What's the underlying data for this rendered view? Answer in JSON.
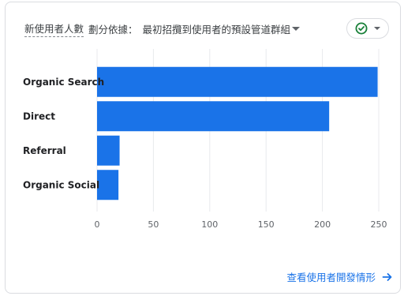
{
  "header": {
    "metric": "新使用者人數",
    "by_label": "劃分依據：",
    "dimension": "最初招攬到使用者的預設管道群組"
  },
  "status_button": {
    "icon": "check-circle-icon",
    "color": "#188038"
  },
  "footer": {
    "link_label": "查看使用者開發情形",
    "icon": "arrow-right-icon"
  },
  "chart_data": {
    "type": "bar",
    "orientation": "horizontal",
    "categories": [
      "Organic Search",
      "Direct",
      "Referral",
      "Organic Social"
    ],
    "values": [
      249,
      206,
      20,
      19
    ],
    "xlim": [
      0,
      250
    ],
    "xticks": [
      0,
      50,
      100,
      150,
      200,
      250
    ],
    "grid": true,
    "bar_color": "#1a73e8"
  }
}
